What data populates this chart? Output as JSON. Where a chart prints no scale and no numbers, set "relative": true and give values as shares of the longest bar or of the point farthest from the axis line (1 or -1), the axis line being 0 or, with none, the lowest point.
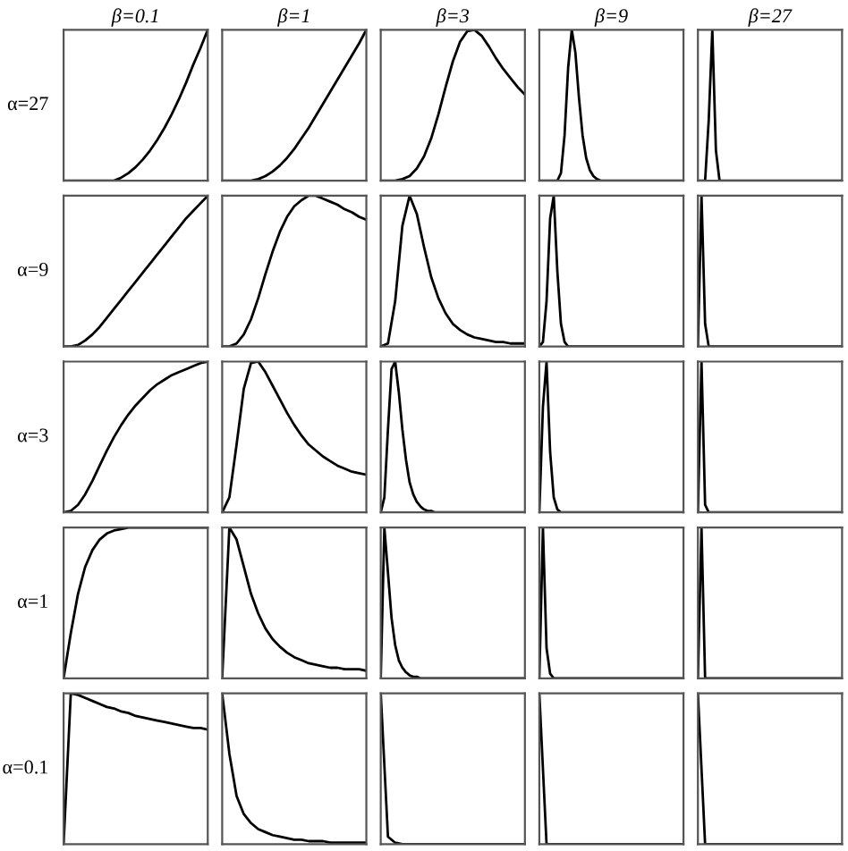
{
  "chart_data": [
    {
      "type": "line",
      "relative": true,
      "title": "β=0.1",
      "ylabel": "α=27",
      "color": "#000000",
      "categories": [
        null,
        null,
        null,
        null,
        null,
        null,
        null,
        null,
        null,
        null,
        null,
        null,
        null,
        null,
        null,
        null,
        null,
        null,
        null,
        null,
        null
      ],
      "values": [
        0,
        0,
        0,
        0,
        0,
        0,
        0,
        0,
        0.02,
        0.05,
        0.09,
        0.14,
        0.2,
        0.27,
        0.35,
        0.44,
        0.54,
        0.65,
        0.77,
        0.88,
        1.0
      ]
    },
    {
      "type": "line",
      "relative": true,
      "title": "β=1",
      "color": "#000000",
      "categories": [
        null,
        null,
        null,
        null,
        null,
        null,
        null,
        null,
        null,
        null,
        null,
        null,
        null,
        null,
        null,
        null,
        null,
        null,
        null,
        null,
        null
      ],
      "values": [
        0,
        0,
        0,
        0,
        0,
        0.01,
        0.03,
        0.06,
        0.1,
        0.15,
        0.21,
        0.28,
        0.35,
        0.43,
        0.51,
        0.59,
        0.67,
        0.75,
        0.83,
        0.91,
        1.0
      ]
    },
    {
      "type": "line",
      "relative": true,
      "title": "β=3",
      "color": "#000000",
      "categories": [
        null,
        null,
        null,
        null,
        null,
        null,
        null,
        null,
        null,
        null,
        null,
        null,
        null,
        null,
        null,
        null,
        null,
        null,
        null,
        null,
        null
      ],
      "values": [
        0,
        0,
        0,
        0.01,
        0.03,
        0.08,
        0.16,
        0.28,
        0.44,
        0.62,
        0.79,
        0.92,
        0.99,
        1.0,
        0.96,
        0.89,
        0.81,
        0.74,
        0.68,
        0.62,
        0.57
      ]
    },
    {
      "type": "line",
      "relative": true,
      "title": "β=9",
      "color": "#000000",
      "categories": [
        null,
        null,
        null,
        null,
        null,
        null,
        null,
        null,
        null,
        null,
        null,
        null,
        null,
        null,
        null,
        null,
        null,
        null,
        null,
        null,
        null,
        null,
        null,
        null,
        null,
        null,
        null,
        null,
        null,
        null,
        null,
        null,
        null,
        null,
        null,
        null,
        null,
        null,
        null,
        null,
        null
      ],
      "values": [
        0,
        0,
        0,
        0,
        0,
        0,
        0.05,
        0.3,
        0.75,
        1.0,
        0.85,
        0.55,
        0.3,
        0.15,
        0.07,
        0.03,
        0.01,
        0,
        0,
        0,
        0,
        0,
        0,
        0,
        0,
        0,
        0,
        0,
        0,
        0,
        0,
        0,
        0,
        0,
        0,
        0,
        0,
        0,
        0,
        0,
        0
      ]
    },
    {
      "type": "line",
      "relative": true,
      "title": "β=27",
      "color": "#000000",
      "categories": [
        null,
        null,
        null,
        null,
        null,
        null,
        null,
        null,
        null,
        null,
        null,
        null,
        null,
        null,
        null,
        null,
        null,
        null,
        null,
        null,
        null,
        null,
        null,
        null,
        null,
        null,
        null,
        null,
        null,
        null,
        null,
        null,
        null,
        null,
        null,
        null,
        null,
        null,
        null,
        null,
        null
      ],
      "values": [
        0,
        0,
        0,
        0.4,
        1.0,
        0.2,
        0,
        0,
        0,
        0,
        0,
        0,
        0,
        0,
        0,
        0,
        0,
        0,
        0,
        0,
        0,
        0,
        0,
        0,
        0,
        0,
        0,
        0,
        0,
        0,
        0,
        0,
        0,
        0,
        0,
        0,
        0,
        0,
        0,
        0,
        0
      ]
    },
    {
      "type": "line",
      "relative": true,
      "ylabel": "α=9",
      "color": "#000000",
      "categories": [
        null,
        null,
        null,
        null,
        null,
        null,
        null,
        null,
        null,
        null,
        null,
        null,
        null,
        null,
        null,
        null,
        null,
        null,
        null,
        null,
        null
      ],
      "values": [
        0,
        0,
        0.01,
        0.04,
        0.08,
        0.13,
        0.19,
        0.25,
        0.31,
        0.37,
        0.43,
        0.49,
        0.55,
        0.61,
        0.67,
        0.73,
        0.79,
        0.85,
        0.9,
        0.95,
        1.0
      ]
    },
    {
      "type": "line",
      "relative": true,
      "color": "#000000",
      "categories": [
        null,
        null,
        null,
        null,
        null,
        null,
        null,
        null,
        null,
        null,
        null,
        null,
        null,
        null,
        null,
        null,
        null,
        null,
        null,
        null,
        null
      ],
      "values": [
        0,
        0,
        0.02,
        0.08,
        0.18,
        0.32,
        0.48,
        0.63,
        0.76,
        0.86,
        0.93,
        0.97,
        1.0,
        1.0,
        0.98,
        0.96,
        0.94,
        0.91,
        0.89,
        0.86,
        0.84
      ]
    },
    {
      "type": "line",
      "relative": true,
      "color": "#000000",
      "categories": [
        null,
        null,
        null,
        null,
        null,
        null,
        null,
        null,
        null,
        null,
        null,
        null,
        null,
        null,
        null,
        null,
        null,
        null,
        null,
        null,
        null
      ],
      "values": [
        0,
        0.02,
        0.3,
        0.8,
        1.0,
        0.88,
        0.66,
        0.46,
        0.32,
        0.22,
        0.15,
        0.11,
        0.08,
        0.06,
        0.05,
        0.04,
        0.03,
        0.03,
        0.02,
        0.02,
        0.02
      ]
    },
    {
      "type": "line",
      "relative": true,
      "color": "#000000",
      "categories": [
        null,
        null,
        null,
        null,
        null,
        null,
        null,
        null,
        null,
        null,
        null,
        null,
        null,
        null,
        null,
        null,
        null,
        null,
        null,
        null,
        null,
        null,
        null,
        null,
        null,
        null,
        null,
        null,
        null,
        null,
        null,
        null,
        null,
        null,
        null,
        null,
        null,
        null,
        null,
        null,
        null
      ],
      "values": [
        0,
        0.03,
        0.3,
        0.85,
        1.0,
        0.5,
        0.15,
        0.03,
        0,
        0,
        0,
        0,
        0,
        0,
        0,
        0,
        0,
        0,
        0,
        0,
        0,
        0,
        0,
        0,
        0,
        0,
        0,
        0,
        0,
        0,
        0,
        0,
        0,
        0,
        0,
        0,
        0,
        0,
        0,
        0,
        0
      ]
    },
    {
      "type": "line",
      "relative": true,
      "color": "#000000",
      "categories": [
        null,
        null,
        null,
        null,
        null,
        null,
        null,
        null,
        null,
        null,
        null,
        null,
        null,
        null,
        null,
        null,
        null,
        null,
        null,
        null,
        null,
        null,
        null,
        null,
        null,
        null,
        null,
        null,
        null,
        null,
        null,
        null,
        null,
        null,
        null,
        null,
        null,
        null,
        null,
        null,
        null
      ],
      "values": [
        0,
        1.0,
        0.15,
        0,
        0,
        0,
        0,
        0,
        0,
        0,
        0,
        0,
        0,
        0,
        0,
        0,
        0,
        0,
        0,
        0,
        0,
        0,
        0,
        0,
        0,
        0,
        0,
        0,
        0,
        0,
        0,
        0,
        0,
        0,
        0,
        0,
        0,
        0,
        0,
        0,
        0
      ]
    },
    {
      "type": "line",
      "relative": true,
      "ylabel": "α=3",
      "color": "#000000",
      "categories": [
        null,
        null,
        null,
        null,
        null,
        null,
        null,
        null,
        null,
        null,
        null,
        null,
        null,
        null,
        null,
        null,
        null,
        null,
        null,
        null,
        null
      ],
      "values": [
        0,
        0.01,
        0.05,
        0.12,
        0.21,
        0.31,
        0.41,
        0.5,
        0.58,
        0.65,
        0.71,
        0.76,
        0.81,
        0.85,
        0.88,
        0.91,
        0.93,
        0.95,
        0.97,
        0.99,
        1.0
      ]
    },
    {
      "type": "line",
      "relative": true,
      "color": "#000000",
      "categories": [
        null,
        null,
        null,
        null,
        null,
        null,
        null,
        null,
        null,
        null,
        null,
        null,
        null,
        null,
        null,
        null,
        null,
        null,
        null,
        null,
        null
      ],
      "values": [
        0,
        0.1,
        0.45,
        0.82,
        0.99,
        1.0,
        0.93,
        0.84,
        0.75,
        0.66,
        0.58,
        0.51,
        0.45,
        0.41,
        0.37,
        0.34,
        0.31,
        0.29,
        0.27,
        0.26,
        0.25
      ]
    },
    {
      "type": "line",
      "relative": true,
      "color": "#000000",
      "categories": [
        null,
        null,
        null,
        null,
        null,
        null,
        null,
        null,
        null,
        null,
        null,
        null,
        null,
        null,
        null,
        null,
        null,
        null,
        null,
        null,
        null,
        null,
        null,
        null,
        null,
        null,
        null,
        null,
        null,
        null,
        null,
        null,
        null,
        null,
        null,
        null,
        null,
        null,
        null,
        null,
        null
      ],
      "values": [
        0,
        0.1,
        0.55,
        0.95,
        1.0,
        0.8,
        0.55,
        0.35,
        0.2,
        0.12,
        0.07,
        0.04,
        0.02,
        0.01,
        0.01,
        0,
        0,
        0,
        0,
        0,
        0,
        0,
        0,
        0,
        0,
        0,
        0,
        0,
        0,
        0,
        0,
        0,
        0,
        0,
        0,
        0,
        0,
        0,
        0,
        0,
        0
      ]
    },
    {
      "type": "line",
      "relative": true,
      "color": "#000000",
      "categories": [
        null,
        null,
        null,
        null,
        null,
        null,
        null,
        null,
        null,
        null,
        null,
        null,
        null,
        null,
        null,
        null,
        null,
        null,
        null,
        null,
        null,
        null,
        null,
        null,
        null,
        null,
        null,
        null,
        null,
        null,
        null,
        null,
        null,
        null,
        null,
        null,
        null,
        null,
        null,
        null,
        null
      ],
      "values": [
        0,
        0.7,
        1.0,
        0.4,
        0.1,
        0.02,
        0,
        0,
        0,
        0,
        0,
        0,
        0,
        0,
        0,
        0,
        0,
        0,
        0,
        0,
        0,
        0,
        0,
        0,
        0,
        0,
        0,
        0,
        0,
        0,
        0,
        0,
        0,
        0,
        0,
        0,
        0,
        0,
        0,
        0,
        0
      ]
    },
    {
      "type": "line",
      "relative": true,
      "color": "#000000",
      "categories": [
        null,
        null,
        null,
        null,
        null,
        null,
        null,
        null,
        null,
        null,
        null,
        null,
        null,
        null,
        null,
        null,
        null,
        null,
        null,
        null,
        null,
        null,
        null,
        null,
        null,
        null,
        null,
        null,
        null,
        null,
        null,
        null,
        null,
        null,
        null,
        null,
        null,
        null,
        null,
        null,
        null
      ],
      "values": [
        0,
        1.0,
        0.05,
        0,
        0,
        0,
        0,
        0,
        0,
        0,
        0,
        0,
        0,
        0,
        0,
        0,
        0,
        0,
        0,
        0,
        0,
        0,
        0,
        0,
        0,
        0,
        0,
        0,
        0,
        0,
        0,
        0,
        0,
        0,
        0,
        0,
        0,
        0,
        0,
        0,
        0
      ]
    },
    {
      "type": "line",
      "relative": true,
      "ylabel": "α=1",
      "color": "#000000",
      "categories": [
        null,
        null,
        null,
        null,
        null,
        null,
        null,
        null,
        null,
        null,
        null,
        null,
        null,
        null,
        null,
        null,
        null,
        null,
        null,
        null,
        null
      ],
      "values": [
        0,
        0.3,
        0.56,
        0.74,
        0.85,
        0.92,
        0.96,
        0.98,
        0.99,
        1.0,
        1.0,
        1.0,
        1.0,
        1.0,
        1.0,
        1.0,
        1.0,
        1.0,
        1.0,
        1.0,
        1.0
      ]
    },
    {
      "type": "line",
      "relative": true,
      "color": "#000000",
      "categories": [
        null,
        null,
        null,
        null,
        null,
        null,
        null,
        null,
        null,
        null,
        null,
        null,
        null,
        null,
        null,
        null,
        null,
        null,
        null,
        null,
        null
      ],
      "values": [
        0,
        1.0,
        0.92,
        0.74,
        0.56,
        0.43,
        0.33,
        0.26,
        0.21,
        0.17,
        0.14,
        0.12,
        0.1,
        0.09,
        0.08,
        0.07,
        0.07,
        0.06,
        0.06,
        0.06,
        0.05
      ]
    },
    {
      "type": "line",
      "relative": true,
      "color": "#000000",
      "categories": [
        null,
        null,
        null,
        null,
        null,
        null,
        null,
        null,
        null,
        null,
        null,
        null,
        null,
        null,
        null,
        null,
        null,
        null,
        null,
        null,
        null,
        null,
        null,
        null,
        null,
        null,
        null,
        null,
        null,
        null,
        null,
        null,
        null,
        null,
        null,
        null,
        null,
        null,
        null,
        null,
        null
      ],
      "values": [
        0,
        1.0,
        0.7,
        0.4,
        0.22,
        0.12,
        0.07,
        0.04,
        0.02,
        0.01,
        0.01,
        0,
        0,
        0,
        0,
        0,
        0,
        0,
        0,
        0,
        0,
        0,
        0,
        0,
        0,
        0,
        0,
        0,
        0,
        0,
        0,
        0,
        0,
        0,
        0,
        0,
        0,
        0,
        0,
        0,
        0
      ]
    },
    {
      "type": "line",
      "relative": true,
      "color": "#000000",
      "categories": [
        null,
        null,
        null,
        null,
        null,
        null,
        null,
        null,
        null,
        null,
        null,
        null,
        null,
        null,
        null,
        null,
        null,
        null,
        null,
        null,
        null,
        null,
        null,
        null,
        null,
        null,
        null,
        null,
        null,
        null,
        null,
        null,
        null,
        null,
        null,
        null,
        null,
        null,
        null,
        null,
        null
      ],
      "values": [
        0,
        1.0,
        0.2,
        0.03,
        0,
        0,
        0,
        0,
        0,
        0,
        0,
        0,
        0,
        0,
        0,
        0,
        0,
        0,
        0,
        0,
        0,
        0,
        0,
        0,
        0,
        0,
        0,
        0,
        0,
        0,
        0,
        0,
        0,
        0,
        0,
        0,
        0,
        0,
        0,
        0,
        0
      ]
    },
    {
      "type": "line",
      "relative": true,
      "color": "#000000",
      "categories": [
        null,
        null,
        null,
        null,
        null,
        null,
        null,
        null,
        null,
        null,
        null,
        null,
        null,
        null,
        null,
        null,
        null,
        null,
        null,
        null,
        null,
        null,
        null,
        null,
        null,
        null,
        null,
        null,
        null,
        null,
        null,
        null,
        null,
        null,
        null,
        null,
        null,
        null,
        null,
        null,
        null
      ],
      "values": [
        0,
        1.0,
        0,
        0,
        0,
        0,
        0,
        0,
        0,
        0,
        0,
        0,
        0,
        0,
        0,
        0,
        0,
        0,
        0,
        0,
        0,
        0,
        0,
        0,
        0,
        0,
        0,
        0,
        0,
        0,
        0,
        0,
        0,
        0,
        0,
        0,
        0,
        0,
        0,
        0,
        0
      ]
    },
    {
      "type": "line",
      "relative": true,
      "ylabel": "α=0.1",
      "color": "#000000",
      "categories": [
        null,
        null,
        null,
        null,
        null,
        null,
        null,
        null,
        null,
        null,
        null,
        null,
        null,
        null,
        null,
        null,
        null,
        null,
        null,
        null,
        null
      ],
      "values": [
        0,
        1.0,
        0.99,
        0.97,
        0.95,
        0.93,
        0.91,
        0.9,
        0.88,
        0.87,
        0.85,
        0.84,
        0.83,
        0.82,
        0.81,
        0.8,
        0.79,
        0.78,
        0.77,
        0.77,
        0.76
      ]
    },
    {
      "type": "line",
      "relative": true,
      "color": "#000000",
      "categories": [
        null,
        null,
        null,
        null,
        null,
        null,
        null,
        null,
        null,
        null,
        null,
        null,
        null,
        null,
        null,
        null,
        null,
        null,
        null,
        null,
        null
      ],
      "values": [
        1.0,
        0.6,
        0.32,
        0.2,
        0.14,
        0.1,
        0.08,
        0.06,
        0.05,
        0.04,
        0.03,
        0.03,
        0.02,
        0.02,
        0.02,
        0.01,
        0.01,
        0.01,
        0.01,
        0.01,
        0.01
      ]
    },
    {
      "type": "line",
      "relative": true,
      "color": "#000000",
      "categories": [
        null,
        null,
        null,
        null,
        null,
        null,
        null,
        null,
        null,
        null,
        null,
        null,
        null,
        null,
        null,
        null,
        null,
        null,
        null,
        null,
        null
      ],
      "values": [
        1.0,
        0.05,
        0.01,
        0,
        0,
        0,
        0,
        0,
        0,
        0,
        0,
        0,
        0,
        0,
        0,
        0,
        0,
        0,
        0,
        0,
        0
      ]
    },
    {
      "type": "line",
      "relative": true,
      "color": "#000000",
      "categories": [
        null,
        null,
        null,
        null,
        null,
        null,
        null,
        null,
        null,
        null,
        null,
        null,
        null,
        null,
        null,
        null,
        null,
        null,
        null,
        null,
        null
      ],
      "values": [
        1.0,
        0,
        0,
        0,
        0,
        0,
        0,
        0,
        0,
        0,
        0,
        0,
        0,
        0,
        0,
        0,
        0,
        0,
        0,
        0,
        0
      ]
    },
    {
      "type": "line",
      "relative": true,
      "color": "#000000",
      "categories": [
        null,
        null,
        null,
        null,
        null,
        null,
        null,
        null,
        null,
        null,
        null,
        null,
        null,
        null,
        null,
        null,
        null,
        null,
        null,
        null,
        null
      ],
      "values": [
        1.0,
        0,
        0,
        0,
        0,
        0,
        0,
        0,
        0,
        0,
        0,
        0,
        0,
        0,
        0,
        0,
        0,
        0,
        0,
        0,
        0
      ]
    }
  ]
}
